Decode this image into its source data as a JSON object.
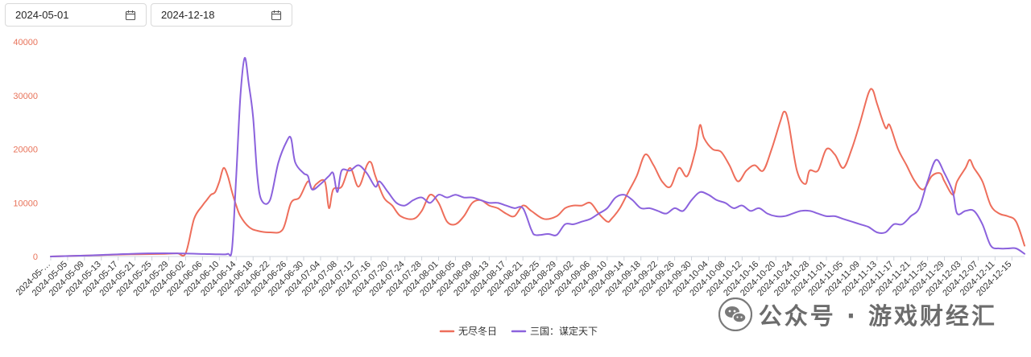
{
  "date_range": {
    "start": "2024-05-01",
    "end": "2024-12-18"
  },
  "watermark": {
    "text": "公众号 · 游戏财经汇"
  },
  "chart_data": {
    "type": "line",
    "x_start": "2024-05-01",
    "x_end": "2024-12-18",
    "x_tick_labels": [
      "2024-05-…",
      "2024-05-05",
      "2024-05-09",
      "2024-05-13",
      "2024-05-17",
      "2024-05-21",
      "2024-05-25",
      "2024-05-29",
      "2024-06-02",
      "2024-06-06",
      "2024-06-10",
      "2024-06-14",
      "2024-06-18",
      "2024-06-22",
      "2024-06-26",
      "2024-06-30",
      "2024-07-04",
      "2024-07-08",
      "2024-07-12",
      "2024-07-16",
      "2024-07-20",
      "2024-07-24",
      "2024-07-28",
      "2024-08-01",
      "2024-08-05",
      "2024-08-09",
      "2024-08-13",
      "2024-08-17",
      "2024-08-21",
      "2024-08-25",
      "2024-08-29",
      "2024-09-02",
      "2024-09-06",
      "2024-09-10",
      "2024-09-14",
      "2024-09-18",
      "2024-09-22",
      "2024-09-26",
      "2024-09-30",
      "2024-10-04",
      "2024-10-08",
      "2024-10-12",
      "2024-10-16",
      "2024-10-20",
      "2024-10-24",
      "2024-10-28",
      "2024-11-01",
      "2024-11-05",
      "2024-11-09",
      "2024-11-13",
      "2024-11-17",
      "2024-11-21",
      "2024-11-25",
      "2024-11-29",
      "2024-12-03",
      "2024-12-07",
      "2024-12-11",
      "2024-12-15"
    ],
    "y_ticks": [
      0,
      10000,
      20000,
      30000,
      40000
    ],
    "ylim": [
      0,
      40000
    ],
    "grid": false,
    "legend_position": "bottom-center",
    "colors": {
      "axis_label": "#e8735a",
      "axis_line": "#cfd4dc",
      "tick_label": "#333333"
    },
    "series": [
      {
        "name": "无尽冬日",
        "color": "#ee6e5b",
        "points": [
          [
            "2024-05-01",
            0
          ],
          [
            "2024-05-10",
            200
          ],
          [
            "2024-05-20",
            400
          ],
          [
            "2024-05-28",
            500
          ],
          [
            "2024-05-31",
            600
          ],
          [
            "2024-06-02",
            600
          ],
          [
            "2024-06-04",
            7000
          ],
          [
            "2024-06-06",
            9500
          ],
          [
            "2024-06-07",
            10500
          ],
          [
            "2024-06-08",
            11500
          ],
          [
            "2024-06-09",
            12000
          ],
          [
            "2024-06-10",
            14000
          ],
          [
            "2024-06-11",
            16500
          ],
          [
            "2024-06-12",
            15000
          ],
          [
            "2024-06-13",
            12000
          ],
          [
            "2024-06-14",
            9500
          ],
          [
            "2024-06-15",
            7500
          ],
          [
            "2024-06-17",
            5500
          ],
          [
            "2024-06-19",
            4800
          ],
          [
            "2024-06-22",
            4500
          ],
          [
            "2024-06-25",
            5000
          ],
          [
            "2024-06-27",
            10000
          ],
          [
            "2024-06-29",
            11000
          ],
          [
            "2024-07-01",
            14000
          ],
          [
            "2024-07-02",
            12500
          ],
          [
            "2024-07-03",
            13500
          ],
          [
            "2024-07-05",
            14000
          ],
          [
            "2024-07-06",
            9000
          ],
          [
            "2024-07-07",
            12500
          ],
          [
            "2024-07-09",
            13000
          ],
          [
            "2024-07-11",
            16500
          ],
          [
            "2024-07-13",
            13000
          ],
          [
            "2024-07-15",
            17000
          ],
          [
            "2024-07-16",
            17500
          ],
          [
            "2024-07-17",
            15000
          ],
          [
            "2024-07-19",
            11000
          ],
          [
            "2024-07-21",
            9500
          ],
          [
            "2024-07-23",
            7500
          ],
          [
            "2024-07-26",
            7000
          ],
          [
            "2024-07-28",
            8500
          ],
          [
            "2024-07-30",
            11500
          ],
          [
            "2024-08-01",
            10000
          ],
          [
            "2024-08-03",
            6500
          ],
          [
            "2024-08-05",
            6000
          ],
          [
            "2024-08-07",
            7500
          ],
          [
            "2024-08-09",
            10000
          ],
          [
            "2024-08-11",
            10500
          ],
          [
            "2024-08-13",
            9500
          ],
          [
            "2024-08-15",
            9000
          ],
          [
            "2024-08-17",
            8000
          ],
          [
            "2024-08-19",
            7500
          ],
          [
            "2024-08-21",
            9500
          ],
          [
            "2024-08-23",
            8500
          ],
          [
            "2024-08-26",
            7000
          ],
          [
            "2024-08-29",
            7500
          ],
          [
            "2024-08-31",
            9000
          ],
          [
            "2024-09-02",
            9500
          ],
          [
            "2024-09-04",
            9500
          ],
          [
            "2024-09-06",
            10000
          ],
          [
            "2024-09-08",
            8000
          ],
          [
            "2024-09-10",
            6500
          ],
          [
            "2024-09-11",
            7000
          ],
          [
            "2024-09-13",
            9000
          ],
          [
            "2024-09-15",
            12000
          ],
          [
            "2024-09-17",
            15000
          ],
          [
            "2024-09-19",
            19000
          ],
          [
            "2024-09-21",
            17000
          ],
          [
            "2024-09-23",
            14000
          ],
          [
            "2024-09-25",
            13000
          ],
          [
            "2024-09-27",
            16500
          ],
          [
            "2024-09-29",
            15000
          ],
          [
            "2024-10-01",
            20000
          ],
          [
            "2024-10-02",
            24500
          ],
          [
            "2024-10-03",
            22000
          ],
          [
            "2024-10-05",
            20000
          ],
          [
            "2024-10-07",
            19500
          ],
          [
            "2024-10-09",
            17000
          ],
          [
            "2024-10-11",
            14000
          ],
          [
            "2024-10-13",
            16000
          ],
          [
            "2024-10-15",
            17000
          ],
          [
            "2024-10-17",
            16000
          ],
          [
            "2024-10-19",
            20000
          ],
          [
            "2024-10-21",
            25000
          ],
          [
            "2024-10-22",
            27000
          ],
          [
            "2024-10-23",
            25000
          ],
          [
            "2024-10-25",
            16000
          ],
          [
            "2024-10-27",
            13500
          ],
          [
            "2024-10-28",
            16000
          ],
          [
            "2024-10-30",
            16000
          ],
          [
            "2024-11-01",
            20000
          ],
          [
            "2024-11-03",
            19000
          ],
          [
            "2024-11-05",
            16500
          ],
          [
            "2024-11-07",
            20000
          ],
          [
            "2024-11-09",
            25000
          ],
          [
            "2024-11-11",
            30500
          ],
          [
            "2024-11-12",
            31000
          ],
          [
            "2024-11-13",
            28500
          ],
          [
            "2024-11-15",
            24000
          ],
          [
            "2024-11-16",
            24500
          ],
          [
            "2024-11-18",
            20000
          ],
          [
            "2024-11-20",
            17000
          ],
          [
            "2024-11-22",
            14000
          ],
          [
            "2024-11-24",
            12500
          ],
          [
            "2024-11-26",
            15000
          ],
          [
            "2024-11-28",
            15500
          ],
          [
            "2024-11-29",
            14000
          ],
          [
            "2024-12-01",
            11500
          ],
          [
            "2024-12-02",
            14000
          ],
          [
            "2024-12-04",
            16500
          ],
          [
            "2024-12-05",
            18000
          ],
          [
            "2024-12-06",
            16500
          ],
          [
            "2024-12-08",
            14000
          ],
          [
            "2024-12-10",
            9500
          ],
          [
            "2024-12-12",
            8000
          ],
          [
            "2024-12-14",
            7500
          ],
          [
            "2024-12-16",
            6500
          ],
          [
            "2024-12-18",
            2000
          ]
        ]
      },
      {
        "name": "三国：谋定天下",
        "color": "#8b62dd",
        "points": [
          [
            "2024-05-01",
            0
          ],
          [
            "2024-05-10",
            200
          ],
          [
            "2024-05-20",
            500
          ],
          [
            "2024-05-28",
            600
          ],
          [
            "2024-06-05",
            500
          ],
          [
            "2024-06-10",
            400
          ],
          [
            "2024-06-12",
            500
          ],
          [
            "2024-06-13",
            1500
          ],
          [
            "2024-06-14",
            15000
          ],
          [
            "2024-06-15",
            30000
          ],
          [
            "2024-06-16",
            37000
          ],
          [
            "2024-06-17",
            32000
          ],
          [
            "2024-06-18",
            26000
          ],
          [
            "2024-06-19",
            15000
          ],
          [
            "2024-06-20",
            10500
          ],
          [
            "2024-06-22",
            10500
          ],
          [
            "2024-06-24",
            17500
          ],
          [
            "2024-06-26",
            21500
          ],
          [
            "2024-06-27",
            22000
          ],
          [
            "2024-06-28",
            17500
          ],
          [
            "2024-06-30",
            15500
          ],
          [
            "2024-07-01",
            15000
          ],
          [
            "2024-07-02",
            12500
          ],
          [
            "2024-07-04",
            13500
          ],
          [
            "2024-07-06",
            15000
          ],
          [
            "2024-07-07",
            15500
          ],
          [
            "2024-07-08",
            12000
          ],
          [
            "2024-07-09",
            16000
          ],
          [
            "2024-07-11",
            16000
          ],
          [
            "2024-07-13",
            17000
          ],
          [
            "2024-07-15",
            15500
          ],
          [
            "2024-07-17",
            13000
          ],
          [
            "2024-07-18",
            14000
          ],
          [
            "2024-07-20",
            12000
          ],
          [
            "2024-07-22",
            10000
          ],
          [
            "2024-07-24",
            9500
          ],
          [
            "2024-07-26",
            10500
          ],
          [
            "2024-07-28",
            11000
          ],
          [
            "2024-07-30",
            10000
          ],
          [
            "2024-08-01",
            11500
          ],
          [
            "2024-08-03",
            11000
          ],
          [
            "2024-08-05",
            11500
          ],
          [
            "2024-08-07",
            11000
          ],
          [
            "2024-08-09",
            11000
          ],
          [
            "2024-08-11",
            10500
          ],
          [
            "2024-08-13",
            10000
          ],
          [
            "2024-08-15",
            10000
          ],
          [
            "2024-08-17",
            9500
          ],
          [
            "2024-08-19",
            9000
          ],
          [
            "2024-08-21",
            9000
          ],
          [
            "2024-08-23",
            5000
          ],
          [
            "2024-08-24",
            4000
          ],
          [
            "2024-08-27",
            4200
          ],
          [
            "2024-08-29",
            4000
          ],
          [
            "2024-08-31",
            6000
          ],
          [
            "2024-09-02",
            6000
          ],
          [
            "2024-09-04",
            6500
          ],
          [
            "2024-09-06",
            7000
          ],
          [
            "2024-09-08",
            8000
          ],
          [
            "2024-09-10",
            9000
          ],
          [
            "2024-09-12",
            11000
          ],
          [
            "2024-09-14",
            11500
          ],
          [
            "2024-09-16",
            10500
          ],
          [
            "2024-09-18",
            9000
          ],
          [
            "2024-09-20",
            9000
          ],
          [
            "2024-09-22",
            8500
          ],
          [
            "2024-09-24",
            8000
          ],
          [
            "2024-09-26",
            9000
          ],
          [
            "2024-09-28",
            8500
          ],
          [
            "2024-09-30",
            10500
          ],
          [
            "2024-10-02",
            12000
          ],
          [
            "2024-10-04",
            11500
          ],
          [
            "2024-10-06",
            10500
          ],
          [
            "2024-10-08",
            10000
          ],
          [
            "2024-10-10",
            9000
          ],
          [
            "2024-10-12",
            9500
          ],
          [
            "2024-10-14",
            8500
          ],
          [
            "2024-10-16",
            9000
          ],
          [
            "2024-10-18",
            8000
          ],
          [
            "2024-10-20",
            7500
          ],
          [
            "2024-10-22",
            7500
          ],
          [
            "2024-10-24",
            8000
          ],
          [
            "2024-10-26",
            8500
          ],
          [
            "2024-10-28",
            8500
          ],
          [
            "2024-10-30",
            8000
          ],
          [
            "2024-11-01",
            7500
          ],
          [
            "2024-11-03",
            7500
          ],
          [
            "2024-11-05",
            7000
          ],
          [
            "2024-11-07",
            6500
          ],
          [
            "2024-11-09",
            6000
          ],
          [
            "2024-11-11",
            5500
          ],
          [
            "2024-11-13",
            4500
          ],
          [
            "2024-11-15",
            4500
          ],
          [
            "2024-11-17",
            6000
          ],
          [
            "2024-11-19",
            6000
          ],
          [
            "2024-11-21",
            7500
          ],
          [
            "2024-11-23",
            9000
          ],
          [
            "2024-11-25",
            14000
          ],
          [
            "2024-11-27",
            18000
          ],
          [
            "2024-11-29",
            15500
          ],
          [
            "2024-12-01",
            12000
          ],
          [
            "2024-12-02",
            8000
          ],
          [
            "2024-12-04",
            8500
          ],
          [
            "2024-12-06",
            8500
          ],
          [
            "2024-12-08",
            6000
          ],
          [
            "2024-12-10",
            2000
          ],
          [
            "2024-12-12",
            1500
          ],
          [
            "2024-12-14",
            1500
          ],
          [
            "2024-12-16",
            1500
          ],
          [
            "2024-12-18",
            500
          ]
        ]
      }
    ]
  }
}
